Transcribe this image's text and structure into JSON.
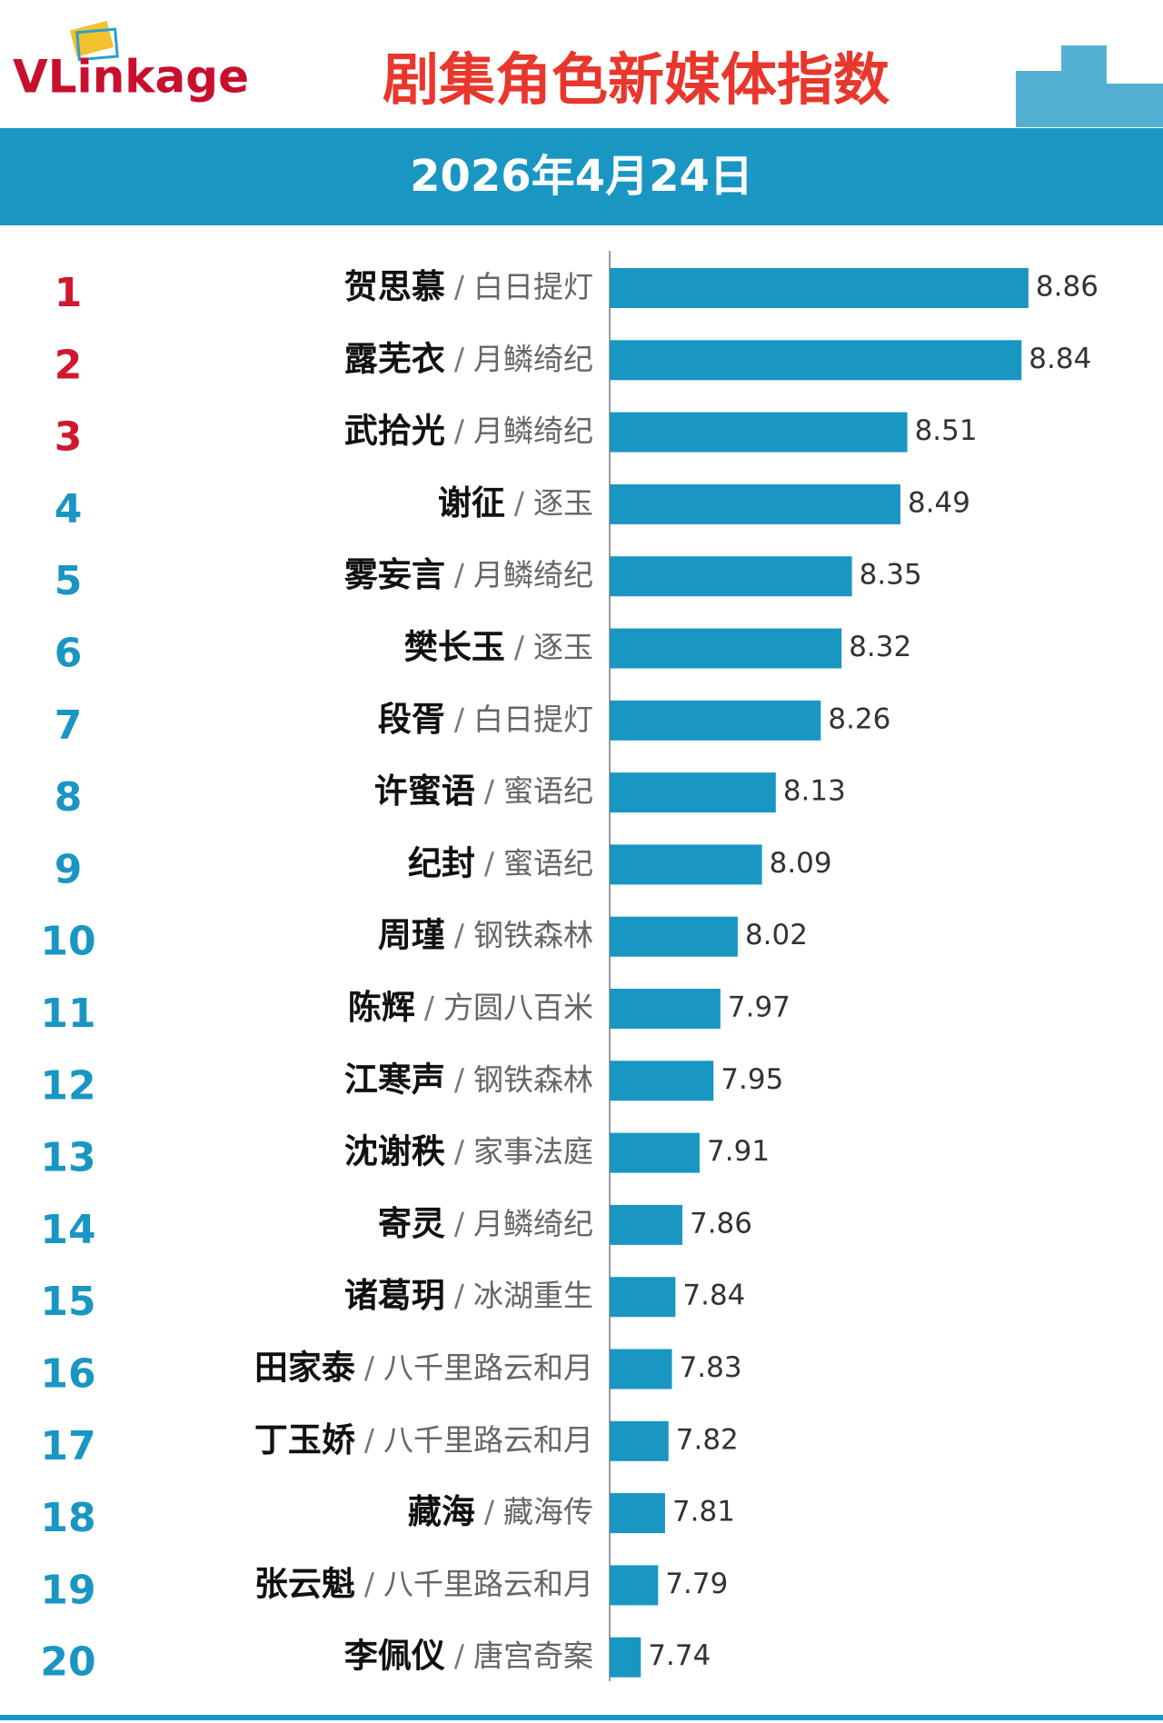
{
  "logo": "VLinkage",
  "chart_data": {
    "type": "ranking-bar",
    "title": "剧集角色新媒体指数",
    "subtitle": "2026年4月24日",
    "ranks": [
      1,
      2,
      3,
      4,
      5,
      6,
      7,
      8,
      9,
      10,
      11,
      12,
      13,
      14,
      15,
      16,
      17,
      18,
      19,
      20
    ],
    "categories": [
      "贺思慕",
      "露芜衣",
      "武拾光",
      "谢征",
      "雾妄言",
      "樊长玉",
      "段胥",
      "许蜜语",
      "纪封",
      "周瑾",
      "陈辉",
      "江寒声",
      "沈谢秩",
      "寄灵",
      "诸葛玥",
      "田家泰",
      "丁玉娇",
      "藏海",
      "张云魁",
      "李佩仪"
    ],
    "separator": "/",
    "shows": [
      "白日提灯",
      "月鳞绮纪",
      "月鳞绮纪",
      "逐玉",
      "月鳞绮纪",
      "逐玉",
      "白日提灯",
      "蜜语纪",
      "蜜语纪",
      "钢铁森林",
      "方圆八百米",
      "钢铁森林",
      "家事法庭",
      "月鳞绮纪",
      "冰湖重生",
      "八千里路云和月",
      "八千里路云和月",
      "藏海传",
      "八千里路云和月",
      "唐宫奇案"
    ],
    "values": [
      8.86,
      8.84,
      8.51,
      8.49,
      8.35,
      8.32,
      8.26,
      8.13,
      8.09,
      8.02,
      7.97,
      7.95,
      7.91,
      7.86,
      7.84,
      7.83,
      7.82,
      7.81,
      7.79,
      7.74
    ],
    "xlim": [
      7.65,
      9.17
    ],
    "color": "#1a96c3",
    "top_color": "#d0182f",
    "top_count": 3
  }
}
